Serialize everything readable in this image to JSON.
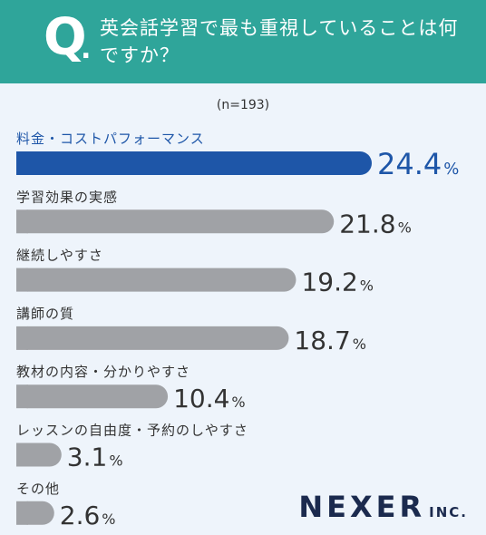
{
  "header": {
    "q_mark": "Q",
    "q_dot": ".",
    "question": "英会話学習で最も重視していることは何ですか？"
  },
  "sample": "(n=193)",
  "logo": {
    "main": "NEXER",
    "sub": "INC."
  },
  "colors": {
    "header_bg": "#2fa59a",
    "highlight": "#1e56a8",
    "bar": "#a0a2a6",
    "background": "#eef4fb"
  },
  "chart_data": {
    "type": "bar",
    "orientation": "horizontal",
    "categories": [
      "料金・コストパフォーマンス",
      "学習効果の実感",
      "継続しやすさ",
      "講師の質",
      "教材の内容・分かりやすさ",
      "レッスンの自由度・予約のしやすさ",
      "その他"
    ],
    "values": [
      24.4,
      21.8,
      19.2,
      18.7,
      10.4,
      3.1,
      2.6
    ],
    "value_labels": [
      "24.4",
      "21.8",
      "19.2",
      "18.7",
      "10.4",
      "3.1",
      "2.6"
    ],
    "unit": "%",
    "highlight_index": 0,
    "xlim": [
      0,
      24.4
    ]
  }
}
